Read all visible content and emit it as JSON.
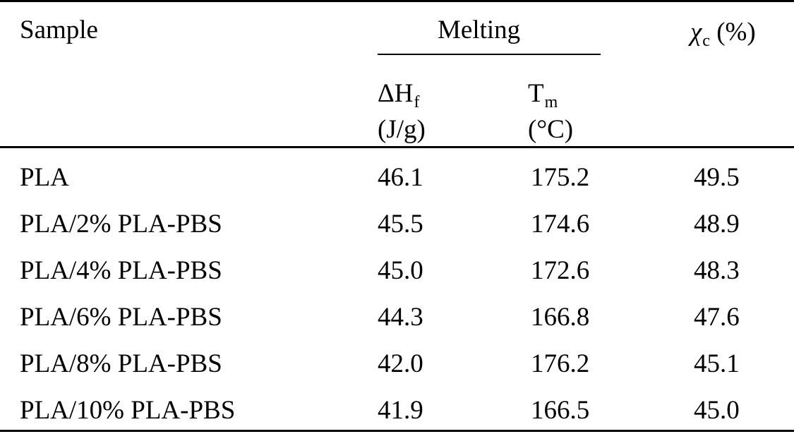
{
  "table": {
    "header": {
      "sample": "Sample",
      "melting": "Melting",
      "chi_symbol": "χ",
      "chi_subscript": "c",
      "chi_unit": "(%)",
      "dh_symbol": "ΔH",
      "dh_subscript": "f",
      "dh_unit": "(J/g)",
      "tm_symbol": "T",
      "tm_subscript": "m",
      "tm_unit": "(°C)"
    },
    "rows": [
      {
        "sample": "PLA",
        "dhf": "46.1",
        "tm": "175.2",
        "chi": "49.5"
      },
      {
        "sample": "PLA/2% PLA-PBS",
        "dhf": "45.5",
        "tm": "174.6",
        "chi": "48.9"
      },
      {
        "sample": "PLA/4% PLA-PBS",
        "dhf": "45.0",
        "tm": "172.6",
        "chi": "48.3"
      },
      {
        "sample": "PLA/6% PLA-PBS",
        "dhf": "44.3",
        "tm": "166.8",
        "chi": "47.6"
      },
      {
        "sample": "PLA/8% PLA-PBS",
        "dhf": "42.0",
        "tm": "176.2",
        "chi": "45.1"
      },
      {
        "sample": "PLA/10% PLA-PBS",
        "dhf": "41.9",
        "tm": "166.5",
        "chi": "45.0"
      }
    ]
  }
}
